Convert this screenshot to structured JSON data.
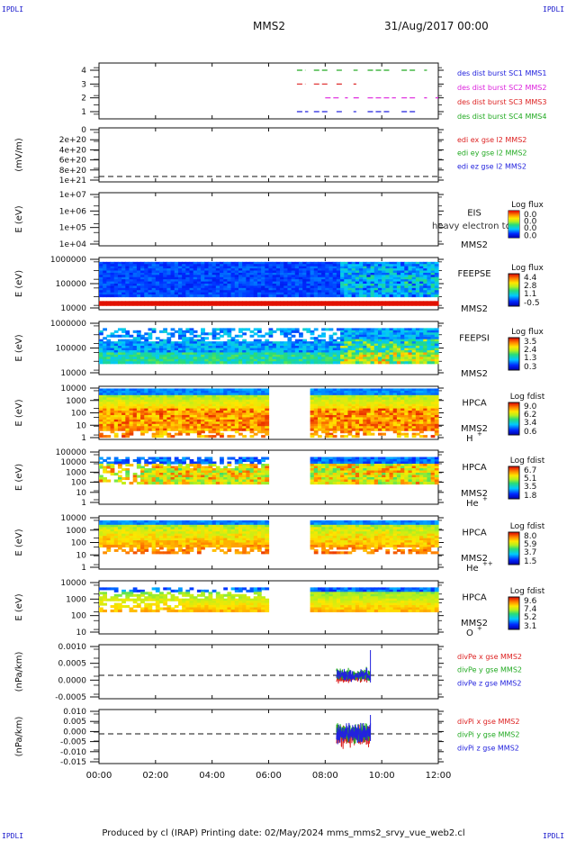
{
  "header": {
    "corner_label": "IPDLI",
    "spacecraft": "MMS2",
    "datetime": "31/Aug/2017 00:00"
  },
  "footer": {
    "text": "Produced by cl (IRAP)   Printing date: 02/May/2024   mms_mms2_srvy_vue_web2.cl"
  },
  "colors": {
    "sc1": "#22aa22",
    "sc2": "#dd2222",
    "sc3": "#dd22dd",
    "sc4": "#2222dd",
    "legend_green": "#22aa22",
    "legend_red": "#dd2222",
    "legend_magenta": "#dd22dd",
    "legend_blue": "#2222dd"
  },
  "chart_data": [
    {
      "type": "timeline",
      "ylabel": "",
      "ytick_labels": [
        "1",
        "2",
        "3",
        "4"
      ],
      "legend": [
        "des dist burst SC1 MMS1",
        "des dist burst SC2 MMS2",
        "des dist burst SC3 MMS3",
        "des dist burst SC4 MMS4"
      ],
      "bursts": [
        {
          "level": 4,
          "color": "sc1",
          "segments": [
            [
              7.0,
              7.3
            ],
            [
              7.6,
              8.1
            ],
            [
              8.4,
              8.6
            ],
            [
              9.0,
              9.15
            ],
            [
              9.5,
              10.3
            ],
            [
              10.7,
              11.2
            ],
            [
              11.5,
              11.6
            ]
          ]
        },
        {
          "level": 3,
          "color": "sc2",
          "segments": [
            [
              7.0,
              7.3
            ],
            [
              7.6,
              8.1
            ],
            [
              8.4,
              8.6
            ],
            [
              9.0,
              9.1
            ]
          ]
        },
        {
          "level": 2,
          "color": "sc3",
          "segments": [
            [
              8.0,
              8.5
            ],
            [
              8.7,
              8.8
            ],
            [
              9.0,
              9.2
            ],
            [
              9.5,
              10.5
            ],
            [
              10.7,
              11.2
            ],
            [
              11.5,
              11.6
            ],
            [
              11.9,
              12.0
            ]
          ]
        },
        {
          "level": 1,
          "color": "sc4",
          "segments": [
            [
              7.0,
              7.4
            ],
            [
              7.6,
              8.1
            ],
            [
              8.4,
              8.6
            ],
            [
              9.0,
              9.1
            ],
            [
              9.5,
              10.3
            ],
            [
              10.7,
              11.2
            ]
          ]
        }
      ]
    },
    {
      "type": "line",
      "ylabel": "(mV/m)",
      "ytick_labels": [
        "0",
        "2e+20",
        "4e+20",
        "6e+20",
        "8e+20",
        "1e+21"
      ],
      "legend": [
        "edi ex gse l2 MMS2",
        "edi ey gse l2 MMS2",
        "edi ez gse l2 MMS2"
      ],
      "legend_colors": [
        "legend_red",
        "legend_green",
        "legend_blue"
      ],
      "zero_line": true
    },
    {
      "type": "heatmap",
      "ylabel": "E (eV)",
      "ytick_labels": [
        "1e+07",
        "1e+06",
        "1e+05",
        "1e+04"
      ],
      "instrument": [
        "EIS",
        "MMS2"
      ],
      "overlay_text": "heavy electron to",
      "colorbar_title": "Log flux",
      "colorbar_ticks": [
        "0.0",
        "0.0",
        "0.0",
        "0.0"
      ]
    },
    {
      "type": "heatmap",
      "ylabel": "E (eV)",
      "ytick_labels": [
        "1000000",
        "100000",
        "10000"
      ],
      "instrument": [
        "FEEPSE",
        "MMS2"
      ],
      "colorbar_title": "Log flux",
      "colorbar_ticks": [
        "4.4",
        "2.8",
        "1.1",
        "-0.5"
      ],
      "coverage": [
        [
          0,
          12
        ]
      ]
    },
    {
      "type": "heatmap",
      "ylabel": "E (eV)",
      "ytick_labels": [
        "1000000",
        "100000",
        "10000"
      ],
      "instrument": [
        "FEEPSI",
        "MMS2"
      ],
      "colorbar_title": "Log flux",
      "colorbar_ticks": [
        "3.5",
        "2.4",
        "1.3",
        "0.3"
      ],
      "coverage": [
        [
          0,
          12
        ]
      ]
    },
    {
      "type": "heatmap",
      "ylabel": "E (eV)",
      "ytick_labels": [
        "10000",
        "1000",
        "100",
        "10",
        "1"
      ],
      "instrument": [
        "HPCA",
        "MMS2"
      ],
      "species": "H",
      "species_charge": "+",
      "colorbar_title": "Log fdist",
      "colorbar_ticks": [
        "9.0",
        "6.2",
        "3.4",
        "0.6"
      ],
      "coverage": [
        [
          0,
          6.0
        ],
        [
          7.5,
          12
        ]
      ]
    },
    {
      "type": "heatmap",
      "ylabel": "E (eV)",
      "ytick_labels": [
        "100000",
        "10000",
        "1000",
        "100",
        "10",
        "1"
      ],
      "instrument": [
        "HPCA",
        "MMS2"
      ],
      "species": "He",
      "species_charge": "+",
      "colorbar_title": "Log fdist",
      "colorbar_ticks": [
        "6.7",
        "5.1",
        "3.5",
        "1.8"
      ],
      "coverage": [
        [
          0,
          6.0
        ],
        [
          7.5,
          12
        ]
      ]
    },
    {
      "type": "heatmap",
      "ylabel": "E (eV)",
      "ytick_labels": [
        "10000",
        "1000",
        "100",
        "10",
        "1"
      ],
      "instrument": [
        "HPCA",
        "MMS2"
      ],
      "species": "He",
      "species_charge": "++",
      "colorbar_title": "Log fdist",
      "colorbar_ticks": [
        "8.0",
        "5.9",
        "3.7",
        "1.5"
      ],
      "coverage": [
        [
          0,
          6.0
        ],
        [
          7.5,
          12
        ]
      ]
    },
    {
      "type": "heatmap",
      "ylabel": "E (eV)",
      "ytick_labels": [
        "10000",
        "1000",
        "100",
        "10"
      ],
      "instrument": [
        "HPCA",
        "MMS2"
      ],
      "species": "O",
      "species_charge": "+",
      "colorbar_title": "Log fdist",
      "colorbar_ticks": [
        "9.6",
        "7.4",
        "5.2",
        "3.1"
      ],
      "coverage": [
        [
          0,
          6.0
        ],
        [
          7.5,
          12
        ]
      ]
    },
    {
      "type": "line",
      "ylabel": "(nPa/km)",
      "ytick_labels": [
        "0.0010",
        "0.0005",
        "0.0000",
        "-0.0005"
      ],
      "legend": [
        "divPe x gse MMS2",
        "divPe y gse MMS2",
        "divPe z gse MMS2"
      ],
      "legend_colors": [
        "legend_red",
        "legend_green",
        "legend_blue"
      ],
      "zero_line": true,
      "data_span": [
        8.4,
        9.6
      ]
    },
    {
      "type": "line",
      "ylabel": "(nPa/km)",
      "ytick_labels": [
        "0.010",
        "0.005",
        "0.000",
        "-0.005",
        "-0.010",
        "-0.015"
      ],
      "legend": [
        "divPi x gse MMS2",
        "divPi y gse MMS2",
        "divPi z gse MMS2"
      ],
      "legend_colors": [
        "legend_red",
        "legend_green",
        "legend_blue"
      ],
      "zero_line": true,
      "data_span": [
        8.4,
        9.6
      ]
    }
  ],
  "x_axis": {
    "range_hours": [
      0,
      12
    ],
    "tick_labels": [
      "00:00",
      "02:00",
      "04:00",
      "06:00",
      "08:00",
      "10:00",
      "12:00"
    ]
  }
}
